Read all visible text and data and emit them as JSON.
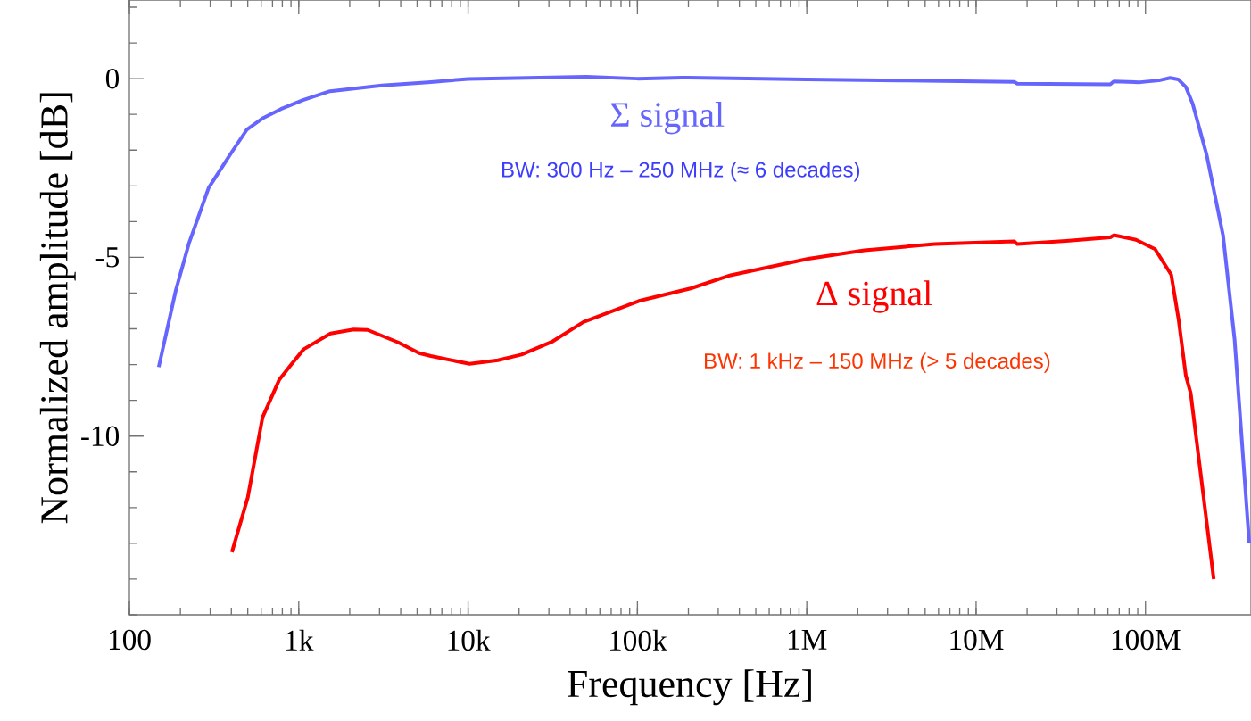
{
  "chart_data": {
    "type": "line",
    "xlabel": "Frequency  [Hz]",
    "ylabel": "Normalized amplitude [dB]",
    "log": "x",
    "marker": "none",
    "line_style": "solid",
    "xlim": [
      100,
      420000000
    ],
    "ylim": [
      -15,
      2.2
    ],
    "xticks": [
      {
        "value": 100,
        "label": "100"
      },
      {
        "value": 1000,
        "label": "1k"
      },
      {
        "value": 10000,
        "label": "10k"
      },
      {
        "value": 100000,
        "label": "100k"
      },
      {
        "value": 1000000,
        "label": "1M"
      },
      {
        "value": 10000000,
        "label": "10M"
      },
      {
        "value": 100000000,
        "label": "100M"
      }
    ],
    "yticks": [
      -10,
      -5,
      0
    ],
    "series": [
      {
        "name": "Σ signal",
        "color": "#6666ff",
        "x": [
          149,
          188,
          225,
          294,
          403,
          495,
          617,
          785,
          1060,
          1530,
          3100,
          5800,
          10000,
          50000,
          100000,
          200000,
          1000000,
          3500000,
          16800000,
          17500000,
          62000000,
          65000000,
          93000000,
          120000000,
          140000000,
          156000000,
          173000000,
          190000000,
          230000000,
          287000000,
          336000000,
          410000000
        ],
        "values": [
          -8.07,
          -5.92,
          -4.6,
          -3.05,
          -2.05,
          -1.42,
          -1.1,
          -0.85,
          -0.6,
          -0.35,
          -0.19,
          -0.1,
          -0.01,
          0.05,
          0,
          0.03,
          -0.02,
          -0.05,
          -0.09,
          -0.14,
          -0.16,
          -0.08,
          -0.1,
          -0.05,
          0.02,
          -0.02,
          -0.23,
          -0.7,
          -2.14,
          -4.38,
          -7.3,
          -13.0
        ]
      },
      {
        "name": "Δ signal",
        "color": "#ff0000",
        "x": [
          403,
          500,
          611,
          766,
          903,
          1070,
          1540,
          2110,
          2550,
          3870,
          5140,
          6030,
          10200,
          15000,
          20700,
          31600,
          48000,
          102000,
          206000,
          355000,
          1020000,
          2190000,
          5700000,
          16800000,
          17500000,
          34000000,
          62000000,
          65000000,
          88000000,
          114000000,
          142000000,
          157000000,
          173000000,
          185000000,
          253000000
        ],
        "values": [
          -13.25,
          -11.72,
          -9.48,
          -8.43,
          -8.0,
          -7.57,
          -7.13,
          -7.02,
          -7.03,
          -7.38,
          -7.68,
          -7.76,
          -7.98,
          -7.88,
          -7.72,
          -7.35,
          -6.81,
          -6.22,
          -5.87,
          -5.5,
          -5.04,
          -4.8,
          -4.63,
          -4.55,
          -4.63,
          -4.54,
          -4.44,
          -4.38,
          -4.51,
          -4.77,
          -5.49,
          -6.75,
          -8.3,
          -8.8,
          -14.0
        ]
      }
    ],
    "annotations": [
      "BW:  300 Hz – 250 MHz (≈ 6 decades)",
      "BW:  1 kHz – 150 MHz (> 5 decades)"
    ]
  }
}
